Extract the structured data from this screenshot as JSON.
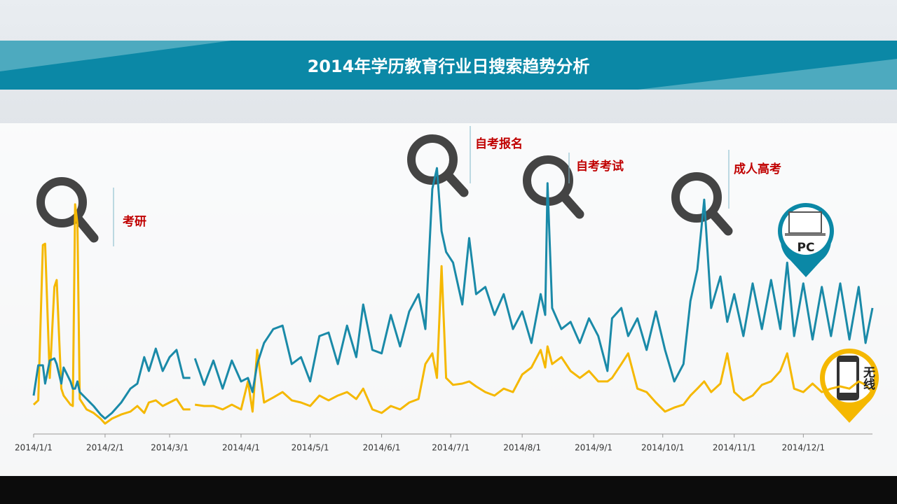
{
  "chart_data": {
    "type": "line",
    "title": "2014年学历教育行业日搜索趋势分析",
    "x": [
      "2014/1/1",
      "2014/1/3",
      "2014/1/5",
      "2014/1/6",
      "2014/1/8",
      "2014/1/10",
      "2014/1/11",
      "2014/1/13",
      "2014/1/14",
      "2014/1/17",
      "2014/1/18",
      "2014/1/19",
      "2014/1/20",
      "2014/1/21",
      "2014/1/24",
      "2014/1/27",
      "2014/1/30",
      "2014/2/1",
      "2014/2/4",
      "2014/2/8",
      "2014/2/12",
      "2014/2/15",
      "2014/2/18",
      "2014/2/20",
      "2014/2/23",
      "2014/2/26",
      "2014/3/1",
      "2014/3/4",
      "2014/3/7",
      "2014/3/10",
      "2014/3/11",
      "2014/3/12",
      "2014/3/16",
      "2014/3/20",
      "2014/3/24",
      "2014/3/28",
      "2014/4/1",
      "2014/4/4",
      "2014/4/6",
      "2014/4/8",
      "2014/4/11",
      "2014/4/15",
      "2014/4/19",
      "2014/4/23",
      "2014/4/27",
      "2014/5/1",
      "2014/5/5",
      "2014/5/9",
      "2014/5/13",
      "2014/5/17",
      "2014/5/21",
      "2014/5/24",
      "2014/5/28",
      "2014/6/1",
      "2014/6/5",
      "2014/6/9",
      "2014/6/13",
      "2014/6/17",
      "2014/6/20",
      "2014/6/23",
      "2014/6/25",
      "2014/6/27",
      "2014/6/29",
      "2014/7/2",
      "2014/7/6",
      "2014/7/9",
      "2014/7/12",
      "2014/7/16",
      "2014/7/20",
      "2014/7/24",
      "2014/7/28",
      "2014/8/1",
      "2014/8/5",
      "2014/8/9",
      "2014/8/11",
      "2014/8/12",
      "2014/8/14",
      "2014/8/18",
      "2014/8/22",
      "2014/8/26",
      "2014/8/30",
      "2014/9/3",
      "2014/9/7",
      "2014/9/9",
      "2014/9/13",
      "2014/9/16",
      "2014/9/20",
      "2014/9/24",
      "2014/9/28",
      "2014/10/2",
      "2014/10/6",
      "2014/10/10",
      "2014/10/13",
      "2014/10/16",
      "2014/10/19",
      "2014/10/22",
      "2014/10/26",
      "2014/10/29",
      "2014/11/1",
      "2014/11/5",
      "2014/11/9",
      "2014/11/13",
      "2014/11/17",
      "2014/11/21",
      "2014/11/24",
      "2014/11/27",
      "2014/12/1",
      "2014/12/5",
      "2014/12/9",
      "2014/12/13",
      "2014/12/17",
      "2014/12/21",
      "2014/12/25",
      "2014/12/28",
      "2014/12/31"
    ],
    "series": [
      {
        "name": "PC",
        "color": "#1a8aa8",
        "values": [
          12.2,
          21.8,
          21.8,
          16,
          23.3,
          24,
          22.2,
          16,
          21.1,
          16.7,
          14.4,
          14.4,
          16.7,
          13.3,
          11.1,
          8.9,
          6.2,
          4.9,
          6.7,
          10,
          14.4,
          16,
          24.4,
          20,
          27.1,
          20,
          24.4,
          26.7,
          17.8,
          17.8,
          null,
          24,
          15.6,
          23.3,
          14.4,
          23.3,
          16.7,
          17.8,
          13.3,
          22.2,
          28.9,
          33.3,
          34.4,
          22.2,
          24.4,
          16.7,
          31.1,
          32.2,
          22.2,
          34.4,
          24.4,
          41.1,
          26.7,
          25.6,
          37.8,
          27.8,
          38.9,
          44.4,
          33.3,
          77.8,
          84.4,
          64.4,
          57.8,
          54.4,
          41.1,
          62.2,
          44.4,
          46.7,
          37.8,
          44.4,
          33.3,
          38.9,
          28.9,
          44.4,
          37.8,
          79.6,
          40,
          33.3,
          35.6,
          28.9,
          36.7,
          31.1,
          20,
          36.7,
          40,
          31.1,
          36.7,
          26.7,
          38.9,
          26.7,
          16.7,
          22.2,
          42.2,
          52.2,
          74.4,
          40,
          50,
          35.6,
          44.4,
          31.1,
          47.8,
          33.3,
          48.9,
          33.3,
          54.4,
          31.1,
          47.8,
          30,
          46.7,
          31.1,
          47.8,
          30,
          46.7,
          28.9,
          40
        ]
      },
      {
        "name": "无线",
        "color": "#f5b800",
        "values": [
          9.3,
          10.7,
          60,
          60.4,
          17.8,
          46.7,
          48.9,
          14.4,
          12.2,
          9.3,
          8.9,
          72.9,
          66.7,
          11.1,
          7.8,
          6.7,
          4.9,
          3.3,
          4.9,
          6.2,
          7.1,
          8.9,
          6.7,
          10,
          10.7,
          8.9,
          10,
          11.1,
          7.8,
          7.8,
          null,
          9.3,
          8.9,
          8.9,
          7.8,
          9.3,
          7.8,
          16.7,
          7.1,
          26.7,
          10,
          11.6,
          13.3,
          10.7,
          10,
          8.9,
          12.2,
          10.7,
          12.2,
          13.3,
          11.1,
          14.4,
          7.8,
          6.7,
          8.9,
          7.8,
          10,
          11.1,
          22.2,
          25.6,
          17.8,
          53.3,
          17.8,
          15.6,
          16,
          16.7,
          15.1,
          13.3,
          12.2,
          14.4,
          13.3,
          18.9,
          21.1,
          26.7,
          21.1,
          27.8,
          22.2,
          24.4,
          20,
          17.8,
          20,
          16.7,
          16.7,
          17.8,
          22.2,
          25.6,
          14.4,
          13.3,
          10,
          7.1,
          8.4,
          9.3,
          12.2,
          14.4,
          16.7,
          13.3,
          16,
          25.6,
          13.3,
          10.7,
          12.2,
          15.6,
          16.7,
          20,
          25.6,
          14.4,
          13.3,
          16,
          13.3,
          14.4,
          15.1,
          14.4,
          16.7,
          15.6,
          13.3
        ]
      }
    ],
    "xlim": [
      "2014/1/1",
      "2014/12/31"
    ],
    "xticks": [
      "2014/1/1",
      "2014/2/1",
      "2014/3/1",
      "2014/4/1",
      "2014/5/1",
      "2014/6/1",
      "2014/7/1",
      "2014/8/1",
      "2014/9/1",
      "2014/10/1",
      "2014/11/1",
      "2014/12/1"
    ],
    "ylim": [
      0,
      100
    ],
    "annotations": [
      "考研",
      "自考报名",
      "自考考试",
      "成人高考"
    ]
  }
}
